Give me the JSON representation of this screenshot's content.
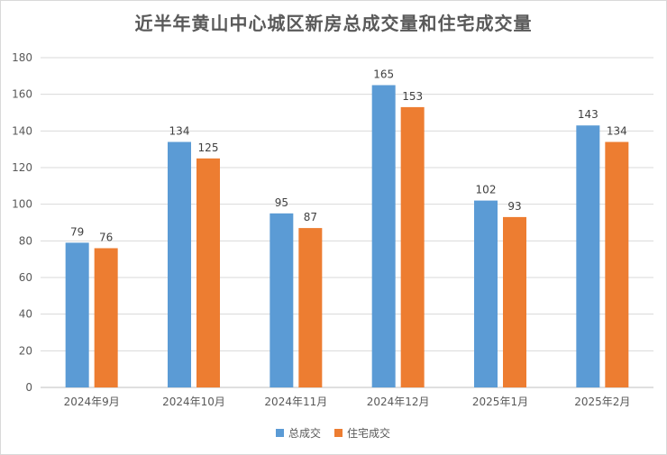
{
  "chart_data": {
    "type": "bar",
    "title": "近半年黄山中心城区新房总成交量和住宅成交量",
    "categories": [
      "2024年9月",
      "2024年10月",
      "2024年11月",
      "2024年12月",
      "2025年1月",
      "2025年2月"
    ],
    "series": [
      {
        "name": "总成交",
        "values": [
          79,
          134,
          95,
          165,
          102,
          143
        ],
        "color": "#5b9bd5"
      },
      {
        "name": "住宅成交",
        "values": [
          76,
          125,
          87,
          153,
          93,
          134
        ],
        "color": "#ed7d31"
      }
    ],
    "ylim": [
      0,
      180
    ],
    "yticks": [
      0,
      20,
      40,
      60,
      80,
      100,
      120,
      140,
      160,
      180
    ],
    "grid": true,
    "legend_position": "bottom"
  }
}
